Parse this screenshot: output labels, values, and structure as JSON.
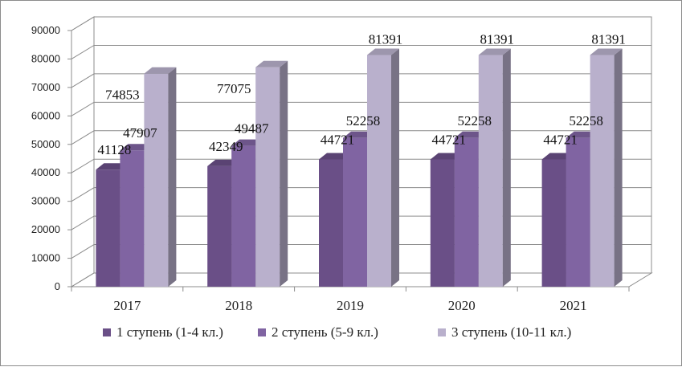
{
  "chart_data": {
    "type": "bar",
    "style": "3d-clustered-column",
    "title": "",
    "xlabel": "",
    "ylabel": "",
    "ylim": [
      0,
      90000
    ],
    "yticks": [
      0,
      10000,
      20000,
      30000,
      40000,
      50000,
      60000,
      70000,
      80000,
      90000
    ],
    "grid": true,
    "legend_position": "bottom",
    "categories": [
      "2017",
      "2018",
      "2019",
      "2020",
      "2021"
    ],
    "series": [
      {
        "name": "1 ступень (1-4 кл.)",
        "color": "#6a4f87",
        "values": [
          41128,
          42349,
          44721,
          44721,
          44721
        ]
      },
      {
        "name": "2 ступень (5-9 кл.)",
        "color": "#8064a2",
        "values": [
          47907,
          49487,
          52258,
          52258,
          52258
        ]
      },
      {
        "name": "3 ступень (10-11 кл.)",
        "color": "#b9b0cc",
        "values": [
          74853,
          77075,
          81391,
          81391,
          81391
        ]
      }
    ]
  }
}
